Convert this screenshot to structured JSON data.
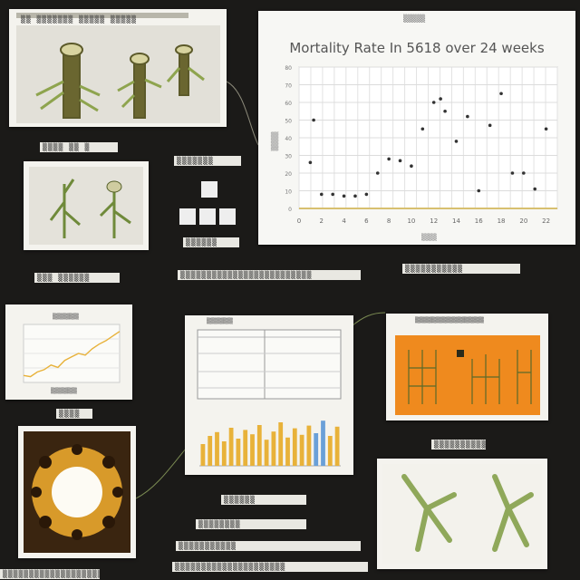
{
  "board": {
    "background": "#1b1a18",
    "accent_orange": "#ef8a1e",
    "accent_green": "#8fa85a",
    "accent_gold": "#e8b23a"
  },
  "labels": [
    "▒▒ ▒▒▒▒▒▒▒ ▒▒▒▒▒ ▒▒▒▒▒",
    "▒▒▒▒ ▒▒ ▒",
    "▒▒▒▒▒▒▒",
    "▒▒▒ ▒▒▒▒▒▒",
    "▒▒▒▒▒▒",
    "▒▒▒▒▒▒▒▒▒▒▒▒▒▒▒▒▒▒▒▒▒▒▒▒▒",
    "▒▒▒▒▒▒▒▒▒▒▒",
    "▒▒▒▒",
    "▒▒▒▒▒▒▒▒▒▒▒▒▒▒",
    "▒▒▒▒▒▒",
    "▒▒▒▒▒▒▒▒",
    "▒▒▒▒▒▒▒▒▒▒▒",
    "▒▒▒▒▒▒▒▒▒▒▒▒▒▒▒▒▒▒▒▒▒",
    "▒▒▒▒▒▒▒▒▒▒▒▒▒▒▒▒▒▒▒▒▒▒▒",
    "▒▒▒▒▒▒▒▒▒▒"
  ],
  "main_chart": {
    "header_small": "▒▒▒▒▒",
    "title": "Mortality Rate In 5618 over 24 weeks",
    "xlabel": "▒▒▒▒",
    "ylabel": "▒▒▒▒▒"
  },
  "chart_data": {
    "type": "scatter",
    "title": "Mortality Rate In 5618 over 24 weeks",
    "xlabel": "",
    "ylabel": "",
    "x_ticks": [
      "0",
      "2",
      "4",
      "6",
      "8",
      "10",
      "12",
      "14",
      "16",
      "18",
      "20",
      "22"
    ],
    "y_ticks": [
      "0",
      "10",
      "20",
      "30",
      "40",
      "50",
      "60",
      "70",
      "80"
    ],
    "xlim": [
      0,
      23
    ],
    "ylim": [
      0,
      80
    ],
    "grid": true,
    "points": [
      {
        "x": 1,
        "y": 26
      },
      {
        "x": 1.3,
        "y": 50
      },
      {
        "x": 2,
        "y": 8
      },
      {
        "x": 3,
        "y": 8
      },
      {
        "x": 4,
        "y": 7
      },
      {
        "x": 5,
        "y": 7
      },
      {
        "x": 6,
        "y": 8
      },
      {
        "x": 7,
        "y": 20
      },
      {
        "x": 8,
        "y": 28
      },
      {
        "x": 9,
        "y": 27
      },
      {
        "x": 10,
        "y": 24
      },
      {
        "x": 11,
        "y": 45
      },
      {
        "x": 12,
        "y": 60
      },
      {
        "x": 12.6,
        "y": 62
      },
      {
        "x": 13,
        "y": 55
      },
      {
        "x": 14,
        "y": 38
      },
      {
        "x": 15,
        "y": 52
      },
      {
        "x": 16,
        "y": 10
      },
      {
        "x": 17,
        "y": 47
      },
      {
        "x": 18,
        "y": 65
      },
      {
        "x": 19,
        "y": 20
      },
      {
        "x": 20,
        "y": 20
      },
      {
        "x": 21,
        "y": 11
      },
      {
        "x": 22,
        "y": 45
      }
    ]
  },
  "small_chart": {
    "title": "▒▒▒▒▒▒▒▒",
    "xlabel": "▒▒▒▒▒▒▒▒"
  },
  "dashboard": {
    "title": "▒▒▒▒▒▒▒▒",
    "bars": [
      0.4,
      0.55,
      0.62,
      0.45,
      0.7,
      0.5,
      0.66,
      0.58,
      0.75,
      0.48,
      0.63,
      0.8,
      0.52,
      0.69,
      0.57,
      0.74,
      0.6,
      0.83,
      0.55,
      0.72
    ],
    "bar_colors": [
      "#e8b23a",
      "#e8b23a",
      "#e8b23a",
      "#e8b23a",
      "#e8b23a",
      "#e8b23a",
      "#e8b23a",
      "#e8b23a",
      "#e8b23a",
      "#e8b23a",
      "#e8b23a",
      "#e8b23a",
      "#e8b23a",
      "#e8b23a",
      "#e8b23a",
      "#e8b23a",
      "#6aa0d8",
      "#6aa0d8",
      "#e8b23a",
      "#e8b23a"
    ]
  },
  "orange_panel": {
    "title": "▒▒▒▒▒▒▒▒▒▒▒▒▒▒▒▒▒▒▒▒▒"
  },
  "small_line_chart": {
    "points": [
      0.12,
      0.1,
      0.18,
      0.22,
      0.3,
      0.26,
      0.38,
      0.44,
      0.5,
      0.47,
      0.58,
      0.66,
      0.72,
      0.8,
      0.88
    ]
  }
}
